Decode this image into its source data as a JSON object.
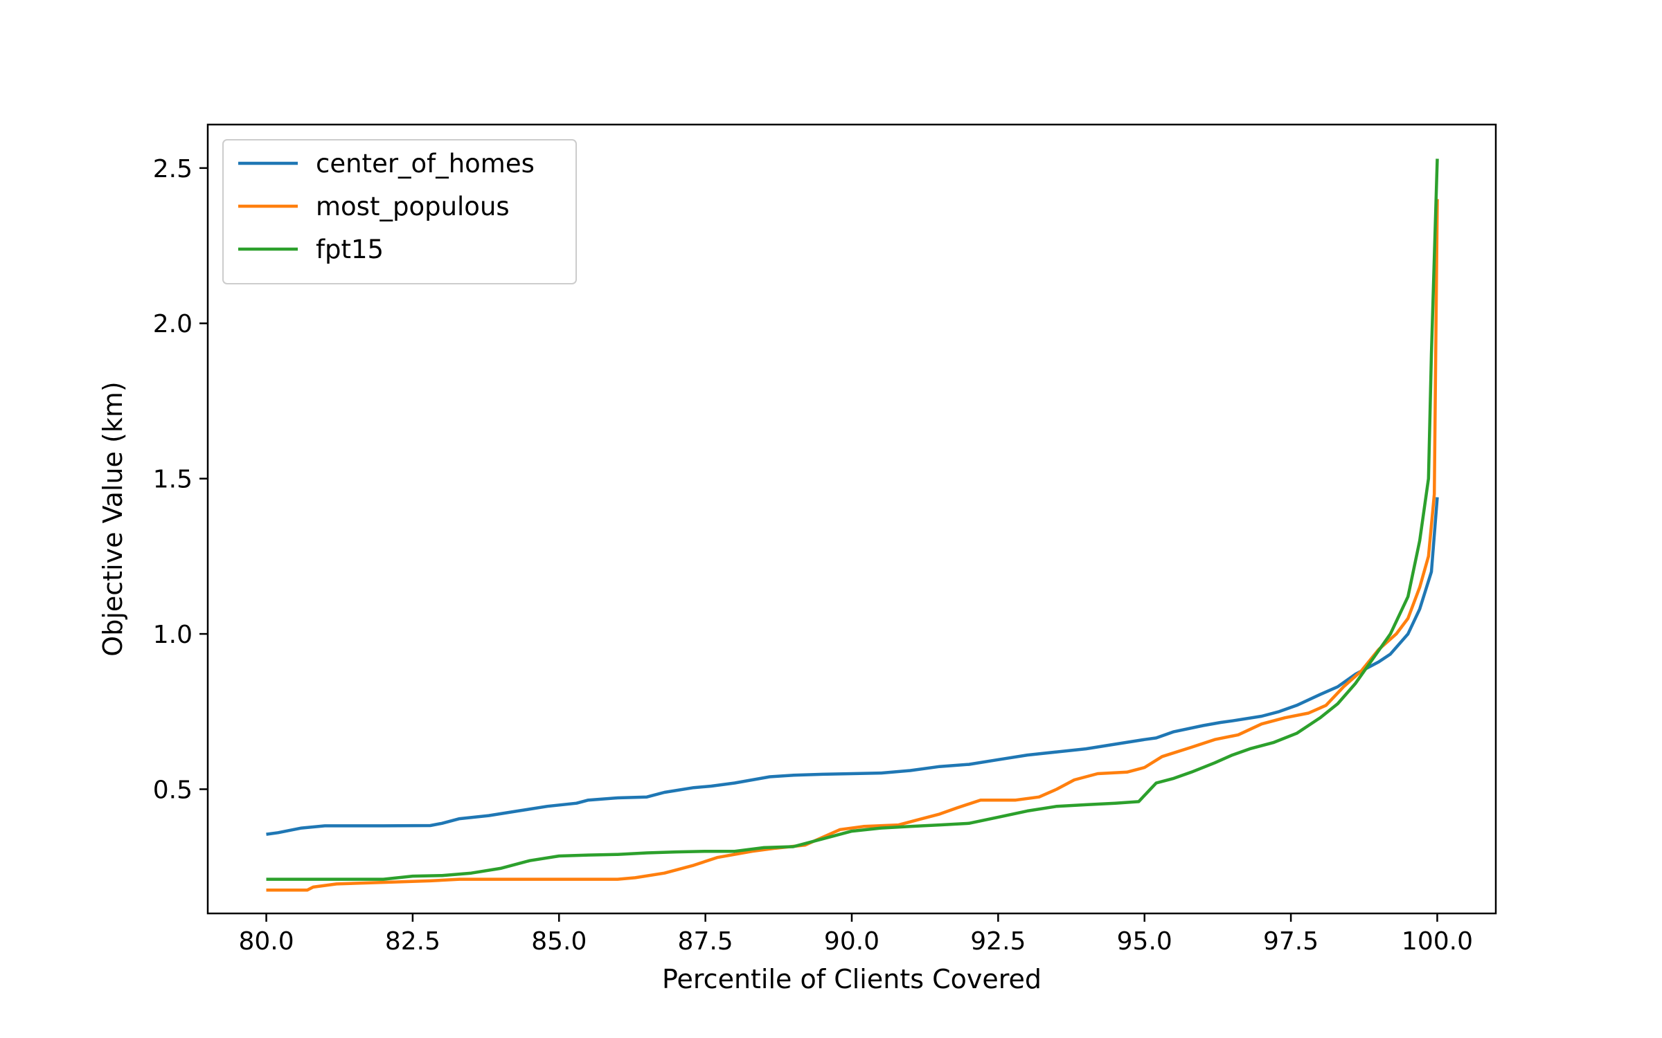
{
  "chart_data": {
    "type": "line",
    "title": "",
    "xlabel": "Percentile of Clients Covered",
    "ylabel": "Objective Value (km)",
    "xlim": [
      79.0,
      101.0
    ],
    "ylim": [
      0.1,
      2.64
    ],
    "xticks": [
      80.0,
      82.5,
      85.0,
      87.5,
      90.0,
      92.5,
      95.0,
      97.5,
      100.0
    ],
    "xtick_labels": [
      "80.0",
      "82.5",
      "85.0",
      "87.5",
      "90.0",
      "92.5",
      "95.0",
      "97.5",
      "100.0"
    ],
    "yticks": [
      0.5,
      1.0,
      1.5,
      2.0,
      2.5
    ],
    "ytick_labels": [
      "0.5",
      "1.0",
      "1.5",
      "2.0",
      "2.5"
    ],
    "grid": false,
    "legend_position": "top-left",
    "series": [
      {
        "name": "center_of_homes",
        "color": "#1f77b4",
        "x": [
          80.0,
          80.2,
          80.6,
          81.0,
          82.0,
          82.8,
          83.0,
          83.3,
          83.8,
          84.3,
          84.8,
          85.3,
          85.5,
          86.0,
          86.5,
          86.8,
          87.3,
          87.6,
          88.0,
          88.6,
          89.0,
          89.5,
          90.0,
          90.5,
          91.0,
          91.5,
          92.0,
          92.5,
          93.0,
          93.5,
          94.0,
          94.5,
          95.0,
          95.2,
          95.5,
          96.0,
          96.3,
          96.5,
          97.0,
          97.3,
          97.6,
          98.0,
          98.3,
          98.6,
          99.0,
          99.2,
          99.5,
          99.7,
          99.9,
          100.0
        ],
        "y": [
          0.355,
          0.36,
          0.375,
          0.382,
          0.382,
          0.383,
          0.39,
          0.405,
          0.415,
          0.43,
          0.445,
          0.455,
          0.465,
          0.472,
          0.475,
          0.49,
          0.505,
          0.51,
          0.52,
          0.54,
          0.545,
          0.548,
          0.55,
          0.552,
          0.56,
          0.573,
          0.58,
          0.595,
          0.61,
          0.62,
          0.63,
          0.645,
          0.66,
          0.665,
          0.685,
          0.705,
          0.715,
          0.72,
          0.735,
          0.75,
          0.77,
          0.805,
          0.83,
          0.87,
          0.91,
          0.935,
          1.0,
          1.08,
          1.2,
          1.44
        ]
      },
      {
        "name": "most_populous",
        "color": "#ff7f0e",
        "x": [
          80.0,
          80.7,
          80.8,
          81.2,
          82.0,
          82.8,
          83.3,
          84.0,
          85.0,
          86.0,
          86.3,
          86.8,
          87.3,
          87.7,
          88.3,
          88.7,
          89.2,
          89.5,
          89.8,
          90.2,
          90.8,
          91.2,
          91.5,
          91.8,
          92.2,
          92.8,
          93.2,
          93.5,
          93.8,
          94.2,
          94.7,
          95.0,
          95.3,
          95.8,
          96.2,
          96.6,
          97.0,
          97.4,
          97.8,
          98.1,
          98.4,
          98.7,
          99.0,
          99.3,
          99.5,
          99.7,
          99.85,
          99.95,
          100.0
        ],
        "y": [
          0.175,
          0.175,
          0.185,
          0.195,
          0.2,
          0.205,
          0.21,
          0.21,
          0.21,
          0.21,
          0.215,
          0.23,
          0.255,
          0.28,
          0.3,
          0.31,
          0.32,
          0.345,
          0.37,
          0.38,
          0.385,
          0.405,
          0.42,
          0.44,
          0.465,
          0.465,
          0.475,
          0.5,
          0.53,
          0.55,
          0.555,
          0.57,
          0.605,
          0.635,
          0.66,
          0.675,
          0.71,
          0.73,
          0.745,
          0.77,
          0.83,
          0.88,
          0.95,
          1.0,
          1.05,
          1.15,
          1.25,
          1.45,
          2.4
        ]
      },
      {
        "name": "fpt15",
        "color": "#2ca02c",
        "x": [
          80.0,
          81.0,
          82.0,
          82.5,
          83.0,
          83.5,
          84.0,
          84.5,
          85.0,
          85.5,
          86.0,
          86.5,
          87.0,
          87.5,
          88.0,
          88.5,
          89.0,
          89.5,
          90.0,
          90.5,
          91.0,
          91.5,
          92.0,
          92.5,
          93.0,
          93.5,
          94.0,
          94.5,
          94.9,
          95.2,
          95.5,
          95.8,
          96.2,
          96.5,
          96.8,
          97.2,
          97.6,
          98.0,
          98.3,
          98.6,
          98.9,
          99.2,
          99.5,
          99.7,
          99.85,
          99.9,
          100.0
        ],
        "y": [
          0.21,
          0.21,
          0.21,
          0.22,
          0.222,
          0.23,
          0.245,
          0.27,
          0.285,
          0.288,
          0.29,
          0.295,
          0.298,
          0.3,
          0.3,
          0.312,
          0.315,
          0.34,
          0.365,
          0.375,
          0.38,
          0.385,
          0.39,
          0.41,
          0.43,
          0.445,
          0.45,
          0.455,
          0.46,
          0.52,
          0.535,
          0.555,
          0.585,
          0.61,
          0.63,
          0.65,
          0.68,
          0.73,
          0.775,
          0.84,
          0.92,
          1.0,
          1.12,
          1.3,
          1.5,
          1.9,
          2.53
        ]
      }
    ]
  }
}
